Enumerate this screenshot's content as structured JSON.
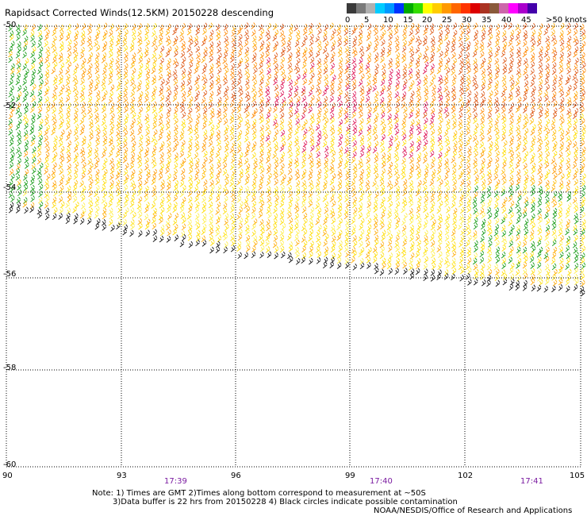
{
  "title": "Rapidsact Corrected Winds(12.5KM) 20150228 descending",
  "legend": {
    "colors": [
      "#3a3a3a",
      "#7a7a7a",
      "#b0b0b0",
      "#00ccff",
      "#0099ff",
      "#0033ff",
      "#00aa00",
      "#33dd00",
      "#ffff00",
      "#ffcc00",
      "#ff9900",
      "#ff6600",
      "#ff3300",
      "#dd0000",
      "#aa3322",
      "#8a5a3a",
      "#cc66aa",
      "#ff00ff",
      "#aa00cc",
      "#4400aa"
    ],
    "labels": [
      "0",
      "5",
      "10",
      "15",
      "20",
      "25",
      "30",
      "35",
      "40",
      "45",
      ">50 knots"
    ]
  },
  "lat_labels": [
    "-50",
    "-52",
    "-54",
    "-56",
    "-58",
    "-60"
  ],
  "lon_labels": [
    "90",
    "93",
    "96",
    "99",
    "102",
    "105"
  ],
  "time_labels": [
    "17:39",
    "17:40",
    "17:41"
  ],
  "notes": [
    "Note: 1) Times are GMT 2)Times along bottom correspond to measurement at ~50S",
    "3)Data buffer is 22 hrs from 20150228 4) Black circles indicate possible contamination",
    "NOAA/NESDIS/Office of Research and Applications"
  ]
}
